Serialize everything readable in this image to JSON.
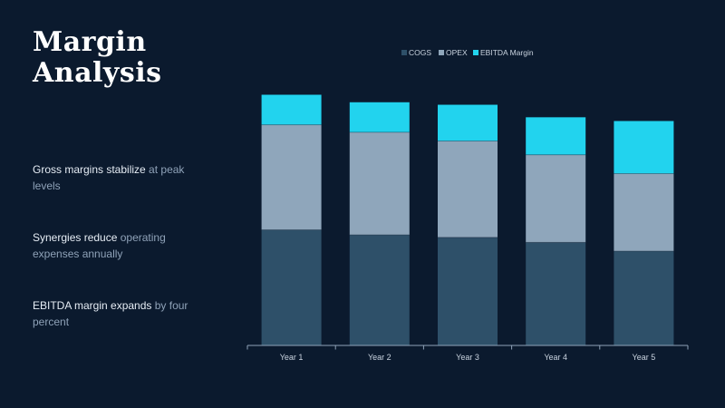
{
  "slide": {
    "title_line1": "Margin",
    "title_line2": "Analysis",
    "bullets": [
      {
        "strong": "Gross margins stabilize",
        "soft": " at peak levels"
      },
      {
        "strong": "Synergies reduce",
        "soft": " operating expenses annually"
      },
      {
        "strong": "EBITDA margin expands",
        "soft": " by four percent"
      }
    ]
  },
  "colors": {
    "cogs": "#2e5069",
    "opex": "#8fa6bb",
    "ebitda": "#22d3ee",
    "axis": "#8fa2b8",
    "text": "#c9d3df",
    "background": "#0b1a2e"
  },
  "chart_data": {
    "type": "bar",
    "stacked": true,
    "categories": [
      "Year 1",
      "Year 2",
      "Year 3",
      "Year 4",
      "Year 5"
    ],
    "series": [
      {
        "name": "COGS",
        "values": [
          46,
          44,
          43,
          41,
          37.5
        ]
      },
      {
        "name": "OPEX",
        "values": [
          42,
          41,
          38.5,
          35,
          31
        ]
      },
      {
        "name": "EBITDA Margin",
        "values": [
          12,
          12,
          14.5,
          15,
          21
        ]
      }
    ],
    "ylim": [
      0,
      100
    ],
    "legend": "top-center",
    "grid": false,
    "title": "",
    "xlabel": "",
    "ylabel": ""
  }
}
